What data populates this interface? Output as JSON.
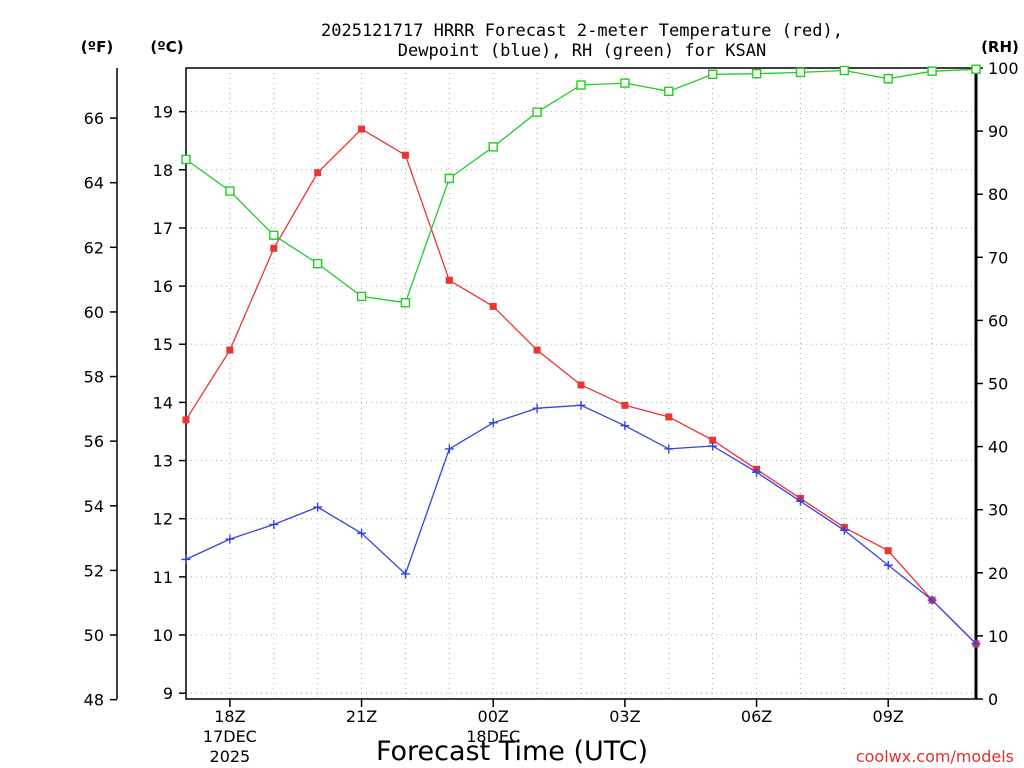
{
  "chart_data": {
    "type": "line",
    "title_line1": "2025121717 HRRR Forecast 2-meter Temperature (red),",
    "title_line2": "Dewpoint (blue), RH (green) for KSAN",
    "xlabel": "Forecast Time (UTC)",
    "credit": "coolwx.com/models",
    "units": {
      "fahrenheit": "(ºF)",
      "celsius": "(ºC)",
      "rh": "(RH)"
    },
    "x_hours": [
      17,
      18,
      19,
      20,
      21,
      22,
      23,
      24,
      25,
      26,
      27,
      28,
      29,
      30,
      31,
      32,
      33,
      34
    ],
    "x_ticks": [
      {
        "hour": 18,
        "label": "18Z",
        "date": "17DEC",
        "year": "2025"
      },
      {
        "hour": 21,
        "label": "21Z",
        "date": "",
        "year": ""
      },
      {
        "hour": 24,
        "label": "00Z",
        "date": "18DEC",
        "year": ""
      },
      {
        "hour": 27,
        "label": "03Z",
        "date": "",
        "year": ""
      },
      {
        "hour": 30,
        "label": "06Z",
        "date": "",
        "year": ""
      },
      {
        "hour": 33,
        "label": "09Z",
        "date": "",
        "year": ""
      }
    ],
    "xlim": [
      17,
      35
    ],
    "c_ylim": [
      8.9,
      19.75
    ],
    "c_ticks": [
      9,
      10,
      11,
      12,
      13,
      14,
      15,
      16,
      17,
      18,
      19
    ],
    "f_ticks": [
      48,
      50,
      52,
      54,
      56,
      58,
      60,
      62,
      64,
      66
    ],
    "rh_ylim": [
      0,
      100
    ],
    "rh_ticks": [
      0,
      10,
      20,
      30,
      40,
      50,
      60,
      70,
      80,
      90,
      100
    ],
    "grid": true,
    "series": [
      {
        "name": "Temperature (red)",
        "axis": "celsius",
        "color": "#ee3333",
        "marker": "filled-square",
        "x": [
          17,
          18,
          19,
          20,
          21,
          22,
          23,
          24,
          25,
          26,
          27,
          28,
          29,
          30,
          31,
          32,
          33,
          34,
          35
        ],
        "values": [
          13.7,
          14.9,
          16.65,
          17.95,
          18.7,
          18.25,
          16.1,
          15.65,
          14.9,
          14.3,
          13.95,
          13.75,
          13.35,
          12.85,
          12.35,
          11.85,
          11.45,
          10.6,
          9.85
        ]
      },
      {
        "name": "Dewpoint (blue)",
        "axis": "celsius",
        "color": "#3344dd",
        "marker": "plus",
        "x": [
          17,
          18,
          19,
          20,
          21,
          22,
          23,
          24,
          25,
          26,
          27,
          28,
          29,
          30,
          31,
          32,
          33,
          34,
          35
        ],
        "values": [
          11.3,
          11.65,
          11.9,
          12.2,
          11.75,
          11.05,
          13.2,
          13.65,
          13.9,
          13.95,
          13.6,
          13.2,
          13.25,
          12.8,
          12.3,
          11.8,
          11.2,
          10.6,
          9.85
        ]
      },
      {
        "name": "RH (green)",
        "axis": "rh",
        "color": "#22cc22",
        "marker": "open-square",
        "x": [
          17,
          18,
          19,
          20,
          21,
          22,
          23,
          24,
          25,
          26,
          27,
          28,
          29,
          30,
          31,
          32,
          33,
          34,
          35
        ],
        "values": [
          85.5,
          80.5,
          73.5,
          69,
          63.8,
          62.8,
          82.5,
          87.5,
          93,
          97.3,
          97.6,
          96.3,
          99,
          99.1,
          99.3,
          99.6,
          98.3,
          99.5,
          99.8
        ]
      }
    ]
  }
}
